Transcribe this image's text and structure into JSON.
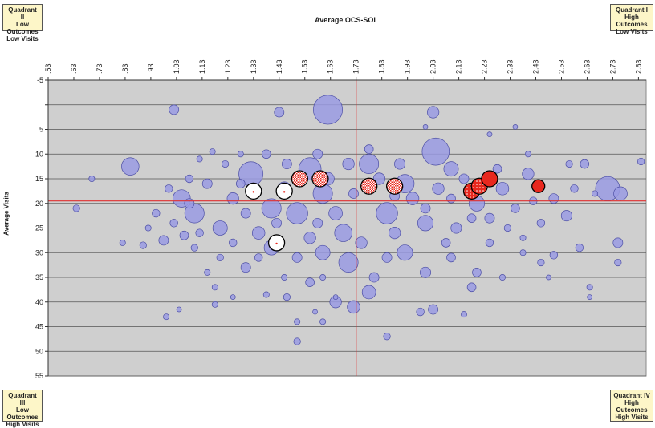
{
  "quadrants": {
    "q2": [
      "Quadrant II",
      "Low Outcomes",
      "Low Visits"
    ],
    "q1": [
      "Quadrant I",
      "High Outcomes",
      "Low Visits"
    ],
    "q3": [
      "Quadrant III",
      "Low Outcomes",
      "High Visits"
    ],
    "q4": [
      "Quadrant IV",
      "High Outcomes",
      "High Visits"
    ]
  },
  "chart_data": {
    "type": "scatter",
    "subtype": "bubble",
    "title": "",
    "xlabel": "Average OCS-SOI",
    "ylabel": "Average Visits",
    "x_axis_position": "top",
    "y_axis_reversed": true,
    "xlim": [
      0.53,
      2.86
    ],
    "ylim": [
      -5,
      55
    ],
    "xticks": [
      ".53",
      ".63",
      ".73",
      ".83",
      ".93",
      "1.03",
      "1.13",
      "1.23",
      "1.33",
      "1.43",
      "1.53",
      "1.63",
      "1.73",
      "1.83",
      "1.93",
      "2.03",
      "2.13",
      "2.23",
      "2.33",
      "2.43",
      "2.53",
      "2.63",
      "2.73",
      "2.83"
    ],
    "xtick_values": [
      0.53,
      0.63,
      0.73,
      0.83,
      0.93,
      1.03,
      1.13,
      1.23,
      1.33,
      1.43,
      1.53,
      1.63,
      1.73,
      1.83,
      1.93,
      2.03,
      2.13,
      2.23,
      2.33,
      2.43,
      2.53,
      2.63,
      2.73,
      2.83
    ],
    "yticks": [
      -5,
      0,
      5,
      10,
      15,
      20,
      25,
      30,
      35,
      40,
      45,
      50,
      55
    ],
    "ytick_labels": [
      "-5",
      "",
      "5",
      "10",
      "15",
      "20",
      "25",
      "30",
      "35",
      "40",
      "45",
      "50",
      "55"
    ],
    "grid": "horizontal",
    "reference_lines": {
      "x": 1.73,
      "y": 19.5
    },
    "colors": {
      "background": "#cfcfcf",
      "bubble_fill": "#9a9be3",
      "bubble_stroke": "#4d4fa6",
      "reference_line": "#e03030",
      "highlight_red": "#e8281e",
      "highlight_white": "#ffffff"
    },
    "background_points": [
      {
        "x": 1.62,
        "y": 1,
        "r": 3
      },
      {
        "x": 2.04,
        "y": 9.5,
        "r": 2.8
      },
      {
        "x": 1.02,
        "y": 1,
        "r": 1
      },
      {
        "x": 1.43,
        "y": 1.5,
        "r": 1
      },
      {
        "x": 2.03,
        "y": 1.5,
        "r": 1.2
      },
      {
        "x": 0.85,
        "y": 12.5,
        "r": 1.8
      },
      {
        "x": 0.7,
        "y": 15,
        "r": 0.6
      },
      {
        "x": 0.64,
        "y": 21,
        "r": 0.7
      },
      {
        "x": 1.05,
        "y": 19,
        "r": 1.8
      },
      {
        "x": 1.1,
        "y": 22,
        "r": 2
      },
      {
        "x": 1.2,
        "y": 25,
        "r": 1.5
      },
      {
        "x": 1.32,
        "y": 14,
        "r": 2.5
      },
      {
        "x": 1.4,
        "y": 21,
        "r": 2
      },
      {
        "x": 1.55,
        "y": 13,
        "r": 2.3
      },
      {
        "x": 1.5,
        "y": 22,
        "r": 2.2
      },
      {
        "x": 1.6,
        "y": 18,
        "r": 2
      },
      {
        "x": 1.68,
        "y": 26,
        "r": 1.8
      },
      {
        "x": 1.78,
        "y": 12,
        "r": 2
      },
      {
        "x": 1.85,
        "y": 22,
        "r": 2.2
      },
      {
        "x": 1.92,
        "y": 16,
        "r": 1.9
      },
      {
        "x": 2.0,
        "y": 24,
        "r": 1.6
      },
      {
        "x": 2.1,
        "y": 13,
        "r": 1.5
      },
      {
        "x": 2.2,
        "y": 20,
        "r": 1.6
      },
      {
        "x": 2.3,
        "y": 17,
        "r": 1.3
      },
      {
        "x": 2.4,
        "y": 14,
        "r": 1.2
      },
      {
        "x": 2.5,
        "y": 19,
        "r": 1
      },
      {
        "x": 2.71,
        "y": 17,
        "r": 2.5
      },
      {
        "x": 2.76,
        "y": 18,
        "r": 1.4
      },
      {
        "x": 2.84,
        "y": 11.5,
        "r": 0.7
      },
      {
        "x": 1.7,
        "y": 32,
        "r": 2
      },
      {
        "x": 1.78,
        "y": 38,
        "r": 1.4
      },
      {
        "x": 1.6,
        "y": 30,
        "r": 1.5
      },
      {
        "x": 1.4,
        "y": 29,
        "r": 1.5
      },
      {
        "x": 1.3,
        "y": 33,
        "r": 1
      },
      {
        "x": 1.55,
        "y": 36,
        "r": 0.9
      },
      {
        "x": 1.65,
        "y": 40,
        "r": 1.2
      },
      {
        "x": 1.72,
        "y": 41,
        "r": 1.3
      },
      {
        "x": 1.98,
        "y": 42,
        "r": 0.8
      },
      {
        "x": 2.03,
        "y": 41.5,
        "r": 1
      },
      {
        "x": 2.15,
        "y": 42.5,
        "r": 0.6
      },
      {
        "x": 2.18,
        "y": 37,
        "r": 0.9
      },
      {
        "x": 1.85,
        "y": 47,
        "r": 0.7
      },
      {
        "x": 1.5,
        "y": 44,
        "r": 0.6
      },
      {
        "x": 1.5,
        "y": 48,
        "r": 0.7
      },
      {
        "x": 1.6,
        "y": 44,
        "r": 0.6
      },
      {
        "x": 0.99,
        "y": 43,
        "r": 0.6
      },
      {
        "x": 1.04,
        "y": 41.5,
        "r": 0.5
      },
      {
        "x": 1.18,
        "y": 40.5,
        "r": 0.6
      },
      {
        "x": 1.18,
        "y": 37,
        "r": 0.6
      },
      {
        "x": 1.25,
        "y": 39,
        "r": 0.5
      },
      {
        "x": 1.45,
        "y": 35,
        "r": 0.6
      },
      {
        "x": 1.6,
        "y": 35,
        "r": 0.6
      },
      {
        "x": 1.65,
        "y": 39,
        "r": 0.5
      },
      {
        "x": 1.8,
        "y": 35,
        "r": 1
      },
      {
        "x": 1.92,
        "y": 30,
        "r": 1.6
      },
      {
        "x": 2.0,
        "y": 34,
        "r": 1.1
      },
      {
        "x": 2.1,
        "y": 31,
        "r": 0.9
      },
      {
        "x": 2.2,
        "y": 34,
        "r": 0.9
      },
      {
        "x": 2.3,
        "y": 35,
        "r": 0.6
      },
      {
        "x": 2.38,
        "y": 30,
        "r": 0.6
      },
      {
        "x": 2.45,
        "y": 32,
        "r": 0.7
      },
      {
        "x": 2.5,
        "y": 30.5,
        "r": 0.8
      },
      {
        "x": 2.48,
        "y": 35,
        "r": 0.5
      },
      {
        "x": 2.55,
        "y": 22.5,
        "r": 1.1
      },
      {
        "x": 2.6,
        "y": 29,
        "r": 0.8
      },
      {
        "x": 2.75,
        "y": 28,
        "r": 1
      },
      {
        "x": 2.75,
        "y": 32,
        "r": 0.7
      },
      {
        "x": 2.64,
        "y": 37,
        "r": 0.6
      },
      {
        "x": 2.64,
        "y": 39,
        "r": 0.5
      },
      {
        "x": 2.58,
        "y": 17,
        "r": 0.8
      },
      {
        "x": 2.66,
        "y": 18,
        "r": 0.6
      },
      {
        "x": 2.62,
        "y": 12,
        "r": 0.9
      },
      {
        "x": 2.56,
        "y": 12,
        "r": 0.7
      },
      {
        "x": 2.35,
        "y": 4.5,
        "r": 0.5
      },
      {
        "x": 2.25,
        "y": 6,
        "r": 0.5
      },
      {
        "x": 2.4,
        "y": 10,
        "r": 0.6
      },
      {
        "x": 2.0,
        "y": 4.5,
        "r": 0.5
      },
      {
        "x": 0.82,
        "y": 28,
        "r": 0.6
      },
      {
        "x": 0.9,
        "y": 28.5,
        "r": 0.7
      },
      {
        "x": 0.92,
        "y": 25,
        "r": 0.6
      },
      {
        "x": 0.98,
        "y": 27.5,
        "r": 1
      },
      {
        "x": 1.06,
        "y": 26.5,
        "r": 0.9
      },
      {
        "x": 1.1,
        "y": 29,
        "r": 0.7
      },
      {
        "x": 0.95,
        "y": 22,
        "r": 0.8
      },
      {
        "x": 1.0,
        "y": 17,
        "r": 0.8
      },
      {
        "x": 1.08,
        "y": 15,
        "r": 0.8
      },
      {
        "x": 1.12,
        "y": 11,
        "r": 0.6
      },
      {
        "x": 1.17,
        "y": 9.5,
        "r": 0.6
      },
      {
        "x": 1.22,
        "y": 12,
        "r": 0.7
      },
      {
        "x": 1.28,
        "y": 10,
        "r": 0.6
      },
      {
        "x": 1.2,
        "y": 31,
        "r": 0.7
      },
      {
        "x": 1.15,
        "y": 34,
        "r": 0.6
      },
      {
        "x": 1.25,
        "y": 28,
        "r": 0.8
      },
      {
        "x": 1.38,
        "y": 38.5,
        "r": 0.6
      },
      {
        "x": 1.46,
        "y": 39,
        "r": 0.7
      },
      {
        "x": 1.57,
        "y": 42,
        "r": 0.5
      },
      {
        "x": 1.35,
        "y": 26,
        "r": 1.3
      },
      {
        "x": 1.45,
        "y": 17,
        "r": 1.4
      },
      {
        "x": 1.65,
        "y": 22,
        "r": 1.4
      },
      {
        "x": 1.75,
        "y": 28,
        "r": 1.2
      },
      {
        "x": 1.88,
        "y": 26,
        "r": 1.2
      },
      {
        "x": 1.95,
        "y": 19,
        "r": 1.3
      },
      {
        "x": 2.05,
        "y": 17,
        "r": 1.2
      },
      {
        "x": 2.12,
        "y": 25,
        "r": 1.1
      },
      {
        "x": 2.25,
        "y": 23,
        "r": 1
      },
      {
        "x": 2.35,
        "y": 21,
        "r": 0.9
      },
      {
        "x": 2.42,
        "y": 19.5,
        "r": 0.8
      },
      {
        "x": 2.45,
        "y": 24,
        "r": 0.8
      },
      {
        "x": 1.25,
        "y": 19,
        "r": 1.2
      },
      {
        "x": 1.15,
        "y": 16,
        "r": 1
      },
      {
        "x": 1.08,
        "y": 20,
        "r": 1
      },
      {
        "x": 1.02,
        "y": 24,
        "r": 0.8
      },
      {
        "x": 1.55,
        "y": 27,
        "r": 1.2
      },
      {
        "x": 1.62,
        "y": 15,
        "r": 1.3
      },
      {
        "x": 1.82,
        "y": 15,
        "r": 1.2
      },
      {
        "x": 1.7,
        "y": 12,
        "r": 1.2
      },
      {
        "x": 1.9,
        "y": 12,
        "r": 1.1
      },
      {
        "x": 2.15,
        "y": 15,
        "r": 1
      },
      {
        "x": 2.28,
        "y": 13,
        "r": 0.9
      },
      {
        "x": 1.46,
        "y": 12,
        "r": 1
      },
      {
        "x": 1.38,
        "y": 10,
        "r": 0.9
      },
      {
        "x": 1.58,
        "y": 10,
        "r": 1
      },
      {
        "x": 1.78,
        "y": 9,
        "r": 0.9
      },
      {
        "x": 1.85,
        "y": 31,
        "r": 1
      },
      {
        "x": 1.5,
        "y": 31,
        "r": 1
      },
      {
        "x": 1.35,
        "y": 31,
        "r": 0.8
      },
      {
        "x": 2.08,
        "y": 28,
        "r": 0.9
      },
      {
        "x": 2.25,
        "y": 28,
        "r": 0.8
      },
      {
        "x": 2.18,
        "y": 23,
        "r": 0.9
      },
      {
        "x": 1.3,
        "y": 22,
        "r": 1
      },
      {
        "x": 1.42,
        "y": 24,
        "r": 1
      },
      {
        "x": 1.58,
        "y": 24,
        "r": 1
      },
      {
        "x": 1.72,
        "y": 18,
        "r": 1
      },
      {
        "x": 1.88,
        "y": 18.5,
        "r": 1
      },
      {
        "x": 2.0,
        "y": 21,
        "r": 1
      },
      {
        "x": 2.1,
        "y": 19,
        "r": 0.9
      },
      {
        "x": 2.32,
        "y": 25,
        "r": 0.7
      },
      {
        "x": 2.38,
        "y": 27,
        "r": 0.6
      },
      {
        "x": 1.12,
        "y": 26,
        "r": 0.8
      },
      {
        "x": 1.28,
        "y": 16,
        "r": 0.9
      }
    ],
    "highlight_points": [
      {
        "x": 1.33,
        "y": 17.5,
        "r": 1,
        "style": "white"
      },
      {
        "x": 1.45,
        "y": 17.5,
        "r": 1,
        "style": "white"
      },
      {
        "x": 1.42,
        "y": 28,
        "r": 1,
        "style": "white"
      },
      {
        "x": 1.51,
        "y": 15,
        "r": 1,
        "style": "red-check"
      },
      {
        "x": 1.59,
        "y": 15,
        "r": 1,
        "style": "red-check"
      },
      {
        "x": 1.78,
        "y": 16.5,
        "r": 1,
        "style": "red-check"
      },
      {
        "x": 1.88,
        "y": 16.5,
        "r": 1,
        "style": "red-check"
      },
      {
        "x": 2.18,
        "y": 17.5,
        "r": 1,
        "style": "red-dots"
      },
      {
        "x": 2.21,
        "y": 16.5,
        "r": 1,
        "style": "red-dots"
      },
      {
        "x": 2.25,
        "y": 15,
        "r": 1,
        "style": "red"
      },
      {
        "x": 2.44,
        "y": 16.5,
        "r": 0.8,
        "style": "red"
      }
    ]
  }
}
